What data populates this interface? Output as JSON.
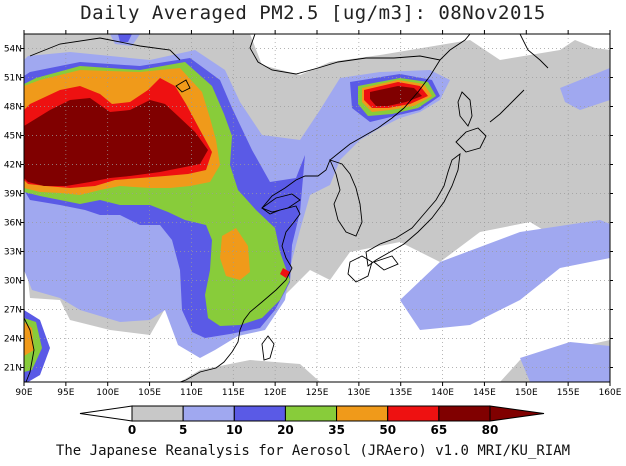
{
  "title": "Daily Averaged PM2.5 [ug/m3]: 08Nov2015",
  "credit": "The Japanese Reanalysis for Aerosol (JRAero) v1.0 MRI/KU_RIAM",
  "map": {
    "lon_range": [
      90,
      160
    ],
    "lat_range": [
      19.5,
      55.5
    ],
    "lon_ticks": [
      {
        "value": 90,
        "label": "90E"
      },
      {
        "value": 95,
        "label": "95E"
      },
      {
        "value": 100,
        "label": "100E"
      },
      {
        "value": 105,
        "label": "105E"
      },
      {
        "value": 110,
        "label": "110E"
      },
      {
        "value": 115,
        "label": "115E"
      },
      {
        "value": 120,
        "label": "120E"
      },
      {
        "value": 125,
        "label": "125E"
      },
      {
        "value": 130,
        "label": "130E"
      },
      {
        "value": 135,
        "label": "135E"
      },
      {
        "value": 140,
        "label": "140E"
      },
      {
        "value": 145,
        "label": "145E"
      },
      {
        "value": 150,
        "label": "150E"
      },
      {
        "value": 155,
        "label": "155E"
      },
      {
        "value": 160,
        "label": "160E"
      }
    ],
    "lat_ticks": [
      {
        "value": 21,
        "label": "21N"
      },
      {
        "value": 24,
        "label": "24N"
      },
      {
        "value": 27,
        "label": "27N"
      },
      {
        "value": 30,
        "label": "30N"
      },
      {
        "value": 33,
        "label": "33N"
      },
      {
        "value": 36,
        "label": "36N"
      },
      {
        "value": 39,
        "label": "39N"
      },
      {
        "value": 42,
        "label": "42N"
      },
      {
        "value": 45,
        "label": "45N"
      },
      {
        "value": 48,
        "label": "48N"
      },
      {
        "value": 51,
        "label": "51N"
      },
      {
        "value": 54,
        "label": "54N"
      }
    ]
  },
  "colorbar": {
    "colors": [
      "#ffffff",
      "#c8c8c8",
      "#a0a8f0",
      "#5a5ae6",
      "#88cc3a",
      "#f09a1a",
      "#ee1111",
      "#800000"
    ],
    "labels": [
      "0",
      "5",
      "10",
      "20",
      "35",
      "50",
      "65",
      "80"
    ]
  }
}
